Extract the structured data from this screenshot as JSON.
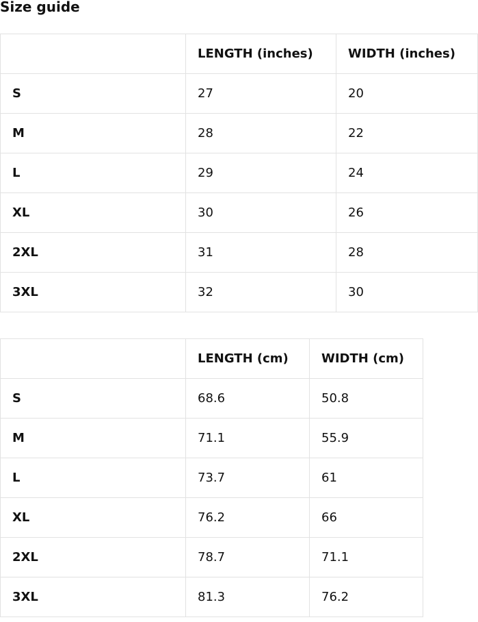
{
  "title": "Size guide",
  "tables": [
    {
      "headers": [
        "",
        "LENGTH (inches)",
        "WIDTH (inches)"
      ],
      "rows": [
        [
          "S",
          "27",
          "20"
        ],
        [
          "M",
          "28",
          "22"
        ],
        [
          "L",
          "29",
          "24"
        ],
        [
          "XL",
          "30",
          "26"
        ],
        [
          "2XL",
          "31",
          "28"
        ],
        [
          "3XL",
          "32",
          "30"
        ]
      ]
    },
    {
      "headers": [
        "",
        "LENGTH (cm)",
        "WIDTH (cm)"
      ],
      "rows": [
        [
          "S",
          "68.6",
          "50.8"
        ],
        [
          "M",
          "71.1",
          "55.9"
        ],
        [
          "L",
          "73.7",
          "61"
        ],
        [
          "XL",
          "76.2",
          "66"
        ],
        [
          "2XL",
          "78.7",
          "71.1"
        ],
        [
          "3XL",
          "81.3",
          "76.2"
        ]
      ]
    }
  ]
}
